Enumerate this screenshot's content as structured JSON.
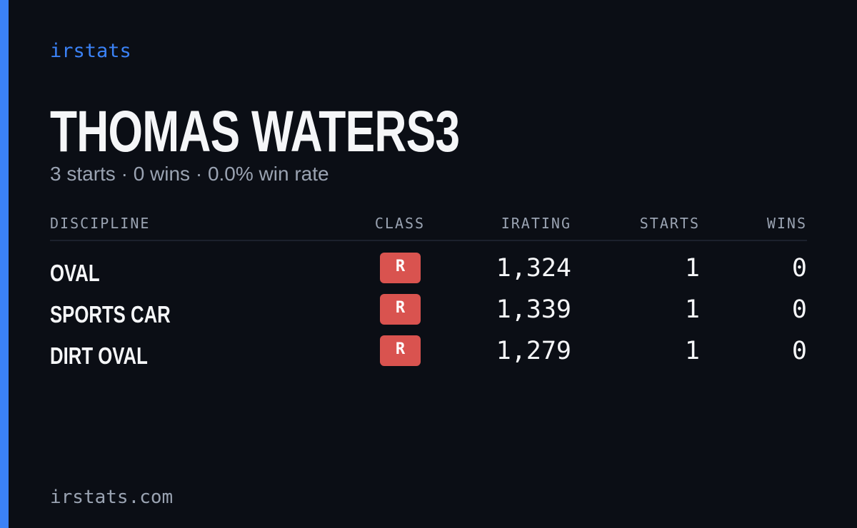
{
  "brand": "irstats",
  "profile": {
    "name": "THOMAS WATERS3",
    "summary": "3 starts · 0 wins · 0.0% win rate"
  },
  "table": {
    "headers": [
      "DISCIPLINE",
      "CLASS",
      "IRATING",
      "STARTS",
      "WINS"
    ],
    "rows": [
      [
        "OVAL",
        "R",
        "1,324",
        "1",
        "0"
      ],
      [
        "SPORTS CAR",
        "R",
        "1,339",
        "1",
        "0"
      ],
      [
        "DIRT OVAL",
        "R",
        "1,279",
        "1",
        "0"
      ]
    ]
  },
  "footer": "irstats.com"
}
